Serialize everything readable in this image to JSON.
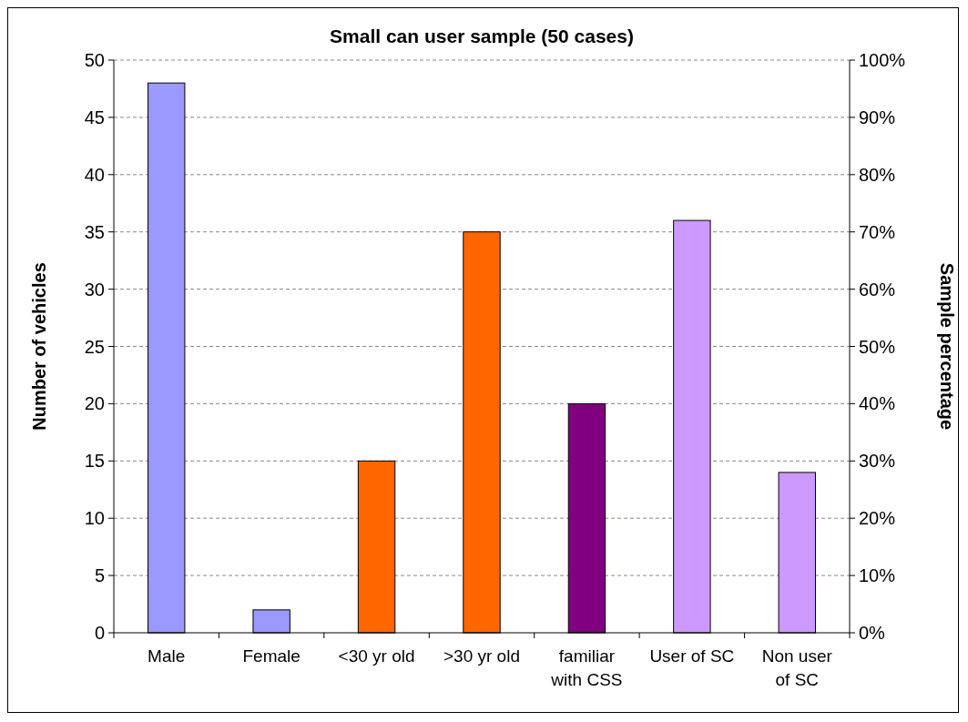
{
  "chart_data": {
    "type": "bar",
    "title": "Small can user sample (50 cases)",
    "ylabel": "Number of vehicles",
    "y2label": "Sample percentage",
    "categories": [
      "Male",
      "Female",
      "<30 yr old",
      ">30 yr old",
      "familiar with CSS",
      "User of SC",
      "Non user of SC"
    ],
    "values": [
      48,
      2,
      15,
      35,
      20,
      36,
      14
    ],
    "colors": [
      "#9999ff",
      "#9999ff",
      "#ff6600",
      "#ff6600",
      "#800080",
      "#cc99ff",
      "#cc99ff"
    ],
    "ylim": [
      0,
      50
    ],
    "yticks": [
      0,
      5,
      10,
      15,
      20,
      25,
      30,
      35,
      40,
      45,
      50
    ],
    "y2lim": [
      0,
      100
    ],
    "y2ticks": [
      {
        "value": 0,
        "label": "0%"
      },
      {
        "value": 10,
        "label": "10%"
      },
      {
        "value": 20,
        "label": "20%"
      },
      {
        "value": 30,
        "label": "30%"
      },
      {
        "value": 40,
        "label": "40%"
      },
      {
        "value": 50,
        "label": "50%"
      },
      {
        "value": 60,
        "label": "60%"
      },
      {
        "value": 70,
        "label": "70%"
      },
      {
        "value": 80,
        "label": "80%"
      },
      {
        "value": 90,
        "label": "90%"
      },
      {
        "value": 100,
        "label": "100%"
      }
    ],
    "grid": "y"
  }
}
